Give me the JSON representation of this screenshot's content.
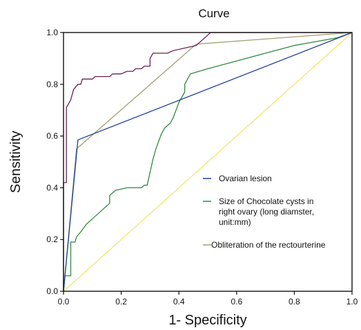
{
  "chart_data": {
    "type": "line",
    "title": "Curve",
    "xlabel": "1- Specificity",
    "ylabel": "Sensitivity",
    "xlim": [
      0,
      1
    ],
    "ylim": [
      0,
      1
    ],
    "xticks": [
      "0.0",
      "0.2",
      "0.4",
      "0.6",
      "0.8",
      "1.0"
    ],
    "yticks": [
      "0.0",
      "0.2",
      "0.4",
      "0.6",
      "0.8",
      "1.0"
    ],
    "grid": false,
    "legend_placement": "inside-right",
    "series": [
      {
        "name": "",
        "color": "#6b1f4e",
        "points": [
          [
            0,
            0
          ],
          [
            0,
            0.42
          ],
          [
            0.01,
            0.42
          ],
          [
            0.01,
            0.71
          ],
          [
            0.025,
            0.74
          ],
          [
            0.035,
            0.78
          ],
          [
            0.05,
            0.8
          ],
          [
            0.06,
            0.8
          ],
          [
            0.065,
            0.82
          ],
          [
            0.1,
            0.82
          ],
          [
            0.11,
            0.83
          ],
          [
            0.16,
            0.83
          ],
          [
            0.17,
            0.84
          ],
          [
            0.2,
            0.84
          ],
          [
            0.22,
            0.85
          ],
          [
            0.24,
            0.85
          ],
          [
            0.25,
            0.86
          ],
          [
            0.27,
            0.86
          ],
          [
            0.28,
            0.87
          ],
          [
            0.3,
            0.87
          ],
          [
            0.3,
            0.9
          ],
          [
            0.31,
            0.92
          ],
          [
            0.36,
            0.92
          ],
          [
            0.38,
            0.93
          ],
          [
            0.46,
            0.95
          ],
          [
            0.48,
            0.97
          ],
          [
            0.5,
            0.99
          ],
          [
            0.51,
            1.0
          ],
          [
            1.0,
            1.0
          ]
        ]
      },
      {
        "name": "Ovarian lesion",
        "color": "#1f3f9a",
        "points": [
          [
            0,
            0
          ],
          [
            0.05,
            0.585
          ],
          [
            1,
            1
          ]
        ]
      },
      {
        "name": "Size of Chocolate cysts in right ovary (long diamster, unit:mm)",
        "color": "#2e8a3e",
        "points": [
          [
            0,
            0
          ],
          [
            0.005,
            0.06
          ],
          [
            0.025,
            0.06
          ],
          [
            0.025,
            0.19
          ],
          [
            0.04,
            0.19
          ],
          [
            0.045,
            0.21
          ],
          [
            0.06,
            0.23
          ],
          [
            0.08,
            0.26
          ],
          [
            0.1,
            0.28
          ],
          [
            0.12,
            0.3
          ],
          [
            0.14,
            0.32
          ],
          [
            0.16,
            0.34
          ],
          [
            0.16,
            0.37
          ],
          [
            0.18,
            0.39
          ],
          [
            0.22,
            0.4
          ],
          [
            0.27,
            0.4
          ],
          [
            0.28,
            0.41
          ],
          [
            0.29,
            0.41
          ],
          [
            0.3,
            0.46
          ],
          [
            0.31,
            0.51
          ],
          [
            0.32,
            0.55
          ],
          [
            0.33,
            0.58
          ],
          [
            0.34,
            0.61
          ],
          [
            0.35,
            0.63
          ],
          [
            0.37,
            0.65
          ],
          [
            0.38,
            0.67
          ],
          [
            0.39,
            0.7
          ],
          [
            0.4,
            0.73
          ],
          [
            0.41,
            0.75
          ],
          [
            0.42,
            0.77
          ],
          [
            0.42,
            0.8
          ],
          [
            0.43,
            0.82
          ],
          [
            0.44,
            0.84
          ],
          [
            0.5,
            0.86
          ],
          [
            0.6,
            0.89
          ],
          [
            0.7,
            0.92
          ],
          [
            0.8,
            0.95
          ],
          [
            0.85,
            0.96
          ],
          [
            0.95,
            0.98
          ],
          [
            1.0,
            1.0
          ]
        ]
      },
      {
        "name": "Obliteration of the rectourterine",
        "color": "#a3a072",
        "points": [
          [
            0,
            0
          ],
          [
            0.045,
            0.55
          ],
          [
            0.46,
            0.955
          ],
          [
            1,
            1
          ]
        ]
      },
      {
        "name": "",
        "color": "#e8e44a",
        "points": [
          [
            0,
            0
          ],
          [
            1,
            1
          ]
        ]
      }
    ]
  }
}
